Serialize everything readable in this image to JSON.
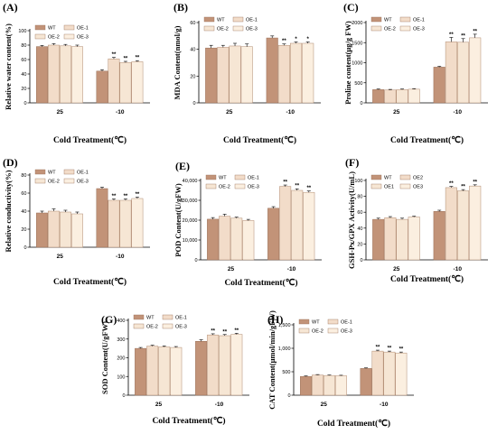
{
  "palette": [
    "#c29378",
    "#f2dcc9",
    "#f6e6d4",
    "#fbefe0"
  ],
  "chart_data": [
    {
      "panel": "(A)",
      "type": "bar",
      "ylabel": "Relative water content(%)",
      "xlabel": "Cold Treatment(℃)",
      "categories": [
        "25",
        "-10"
      ],
      "ylim": [
        0,
        100
      ],
      "yticks": [
        "0",
        "20",
        "40",
        "60",
        "80",
        "100"
      ],
      "series": [
        {
          "name": "WT",
          "values": [
            78,
            44
          ],
          "errors": [
            1.5,
            2
          ]
        },
        {
          "name": "OE-1",
          "values": [
            80,
            61
          ],
          "errors": [
            2,
            2
          ]
        },
        {
          "name": "OE-2",
          "values": [
            79,
            56
          ],
          "errors": [
            2,
            1.5
          ]
        },
        {
          "name": "OE-3",
          "values": [
            78,
            57
          ],
          "errors": [
            2,
            1.5
          ]
        }
      ],
      "significance": [
        [
          "",
          ""
        ],
        [
          "",
          "**"
        ],
        [
          "",
          "**"
        ],
        [
          "",
          "**"
        ]
      ]
    },
    {
      "panel": "(B)",
      "type": "bar",
      "ylabel": "MDA Content(nmol/g)",
      "xlabel": "Cold Treatment(℃)",
      "categories": [
        "25",
        "-10"
      ],
      "ylim": [
        0,
        60
      ],
      "yticks": [
        "0",
        "20",
        "40",
        "60"
      ],
      "series": [
        {
          "name": "WT",
          "values": [
            41,
            48.5
          ],
          "errors": [
            2,
            1.5
          ]
        },
        {
          "name": "OE-1",
          "values": [
            41.5,
            43
          ],
          "errors": [
            1.5,
            1
          ]
        },
        {
          "name": "OE-2",
          "values": [
            42.5,
            44.5
          ],
          "errors": [
            2,
            1
          ]
        },
        {
          "name": "OE-3",
          "values": [
            42,
            44.5
          ],
          "errors": [
            2,
            1
          ]
        }
      ],
      "significance": [
        [
          "",
          ""
        ],
        [
          "",
          "**"
        ],
        [
          "",
          "*"
        ],
        [
          "",
          "*"
        ]
      ]
    },
    {
      "panel": "(C)",
      "type": "bar",
      "ylabel": "Proline content(μg/g FW)",
      "xlabel": "Cold Treatment(℃)",
      "categories": [
        "25",
        "-10"
      ],
      "ylim": [
        0,
        2000
      ],
      "yticks": [
        "0",
        "500",
        "1000",
        "1500",
        "2000"
      ],
      "series": [
        {
          "name": "WT",
          "values": [
            330,
            890
          ],
          "errors": [
            15,
            20
          ]
        },
        {
          "name": "OE-1",
          "values": [
            320,
            1520
          ],
          "errors": [
            15,
            110
          ]
        },
        {
          "name": "OE-2",
          "values": [
            330,
            1510
          ],
          "errors": [
            15,
            90
          ]
        },
        {
          "name": "OE-3",
          "values": [
            340,
            1620
          ],
          "errors": [
            15,
            90
          ]
        }
      ],
      "significance": [
        [
          "",
          ""
        ],
        [
          "",
          "**"
        ],
        [
          "",
          "**"
        ],
        [
          "",
          "**"
        ]
      ]
    },
    {
      "panel": "(D)",
      "type": "bar",
      "ylabel": "Relative conductivity(%)",
      "xlabel": "Cold Treatment(℃)",
      "categories": [
        "25",
        "-10"
      ],
      "ylim": [
        0,
        80
      ],
      "yticks": [
        "0",
        "20",
        "40",
        "60",
        "80"
      ],
      "series": [
        {
          "name": "WT",
          "values": [
            38,
            65
          ],
          "errors": [
            2,
            1.5
          ]
        },
        {
          "name": "OE-1",
          "values": [
            40,
            52
          ],
          "errors": [
            2.5,
            1.5
          ]
        },
        {
          "name": "OE-2",
          "values": [
            39,
            52
          ],
          "errors": [
            2,
            1.5
          ]
        },
        {
          "name": "OE-3",
          "values": [
            37,
            54
          ],
          "errors": [
            2,
            1.5
          ]
        }
      ],
      "significance": [
        [
          "",
          ""
        ],
        [
          "",
          "**"
        ],
        [
          "",
          "**"
        ],
        [
          "",
          "**"
        ]
      ]
    },
    {
      "panel": "(E)",
      "type": "bar",
      "ylabel": "POD Content(U/gFW)",
      "xlabel": "Cold Treatment(℃)",
      "categories": [
        "25",
        "-10"
      ],
      "ylim": [
        0,
        40000
      ],
      "yticks": [
        "0",
        "10,000",
        "20,000",
        "30,000",
        "40,000"
      ],
      "series": [
        {
          "name": "WT",
          "values": [
            20500,
            26000
          ],
          "errors": [
            800,
            800
          ]
        },
        {
          "name": "OE-1",
          "values": [
            22000,
            37000
          ],
          "errors": [
            1000,
            700
          ]
        },
        {
          "name": "OE-2",
          "values": [
            21000,
            35000
          ],
          "errors": [
            500,
            800
          ]
        },
        {
          "name": "OE-3",
          "values": [
            19800,
            34000
          ],
          "errors": [
            600,
            700
          ]
        }
      ],
      "significance": [
        [
          "",
          ""
        ],
        [
          "",
          "**"
        ],
        [
          "",
          "**"
        ],
        [
          "",
          "**"
        ]
      ]
    },
    {
      "panel": "(F)",
      "type": "bar",
      "ylabel": "GSH-Px/GPX Activity(U/mL)",
      "xlabel": "Cold Treatment(℃)",
      "categories": [
        "25",
        "-10"
      ],
      "ylim": [
        0,
        100
      ],
      "yticks": [
        "0",
        "20",
        "40",
        "60",
        "80",
        "100"
      ],
      "series": [
        {
          "name": "WT",
          "values": [
            51,
            61
          ],
          "errors": [
            1.5,
            1.5
          ]
        },
        {
          "name": "OE2",
          "values": [
            53,
            91
          ],
          "errors": [
            1.5,
            1.5
          ]
        },
        {
          "name": "OE1",
          "values": [
            51,
            87
          ],
          "errors": [
            1.5,
            1.5
          ]
        },
        {
          "name": "OE3",
          "values": [
            54,
            93
          ],
          "errors": [
            1,
            1.5
          ]
        }
      ],
      "legend_order": [
        "WT",
        "OE2",
        "OE1",
        "OE3"
      ],
      "significance": [
        [
          "",
          ""
        ],
        [
          "",
          "**"
        ],
        [
          "",
          "**"
        ],
        [
          "",
          "**"
        ]
      ]
    },
    {
      "panel": "(G)",
      "type": "bar",
      "ylabel": "SOD Content(U/gFW)",
      "xlabel": "Cold Treatment(℃)",
      "categories": [
        "25",
        "-10"
      ],
      "ylim": [
        0,
        400
      ],
      "yticks": [
        "0",
        "100",
        "200",
        "300",
        "400"
      ],
      "series": [
        {
          "name": "WT",
          "values": [
            250,
            288
          ],
          "errors": [
            5,
            8
          ]
        },
        {
          "name": "OE-1",
          "values": [
            262,
            322
          ],
          "errors": [
            5,
            6
          ]
        },
        {
          "name": "OE-2",
          "values": [
            258,
            318
          ],
          "errors": [
            5,
            6
          ]
        },
        {
          "name": "OE-3",
          "values": [
            255,
            325
          ],
          "errors": [
            5,
            6
          ]
        }
      ],
      "significance": [
        [
          "",
          ""
        ],
        [
          "",
          "**"
        ],
        [
          "",
          "**"
        ],
        [
          "",
          "**"
        ]
      ]
    },
    {
      "panel": "(H)",
      "type": "bar",
      "ylabel": "CAT Content(μmol/min/gFW)",
      "xlabel": "Cold Treatment(℃)",
      "categories": [
        "25",
        "-10"
      ],
      "ylim": [
        0,
        1500
      ],
      "yticks": [
        "0",
        "500",
        "1,000",
        "1,500"
      ],
      "series": [
        {
          "name": "WT",
          "values": [
            400,
            570
          ],
          "errors": [
            10,
            12
          ]
        },
        {
          "name": "OE-1",
          "values": [
            430,
            940
          ],
          "errors": [
            10,
            20
          ]
        },
        {
          "name": "OE-2",
          "values": [
            420,
            920
          ],
          "errors": [
            10,
            20
          ]
        },
        {
          "name": "OE-3",
          "values": [
            415,
            900
          ],
          "errors": [
            10,
            20
          ]
        }
      ],
      "significance": [
        [
          "",
          ""
        ],
        [
          "",
          "**"
        ],
        [
          "",
          "**"
        ],
        [
          "",
          "**"
        ]
      ]
    }
  ]
}
